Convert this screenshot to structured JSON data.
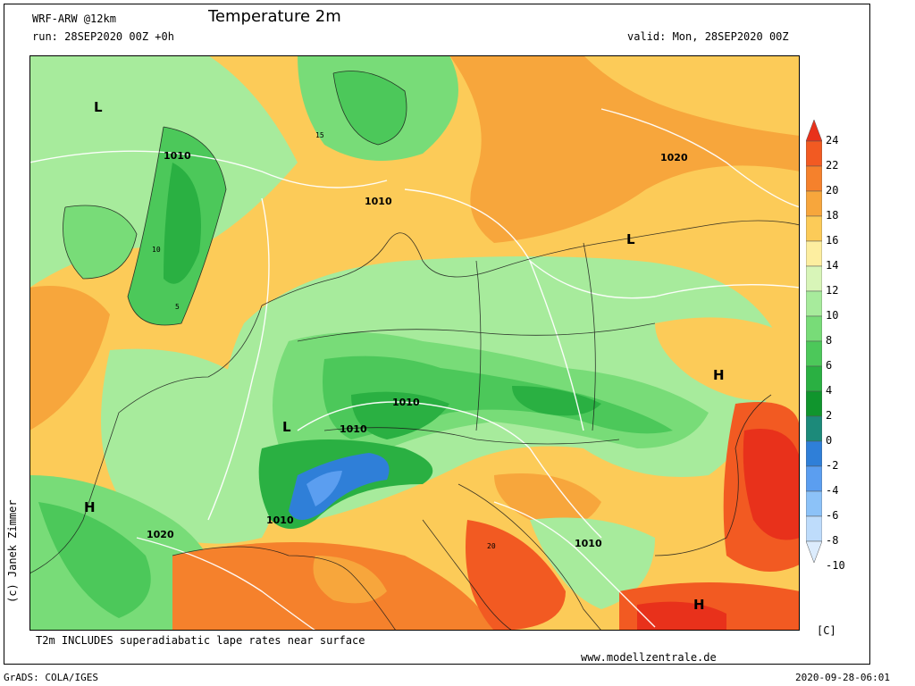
{
  "header": {
    "model": "WRF-ARW @12km",
    "title": "Temperature 2m",
    "run": "run: 28SEP2020 00Z +0h",
    "valid": "valid: Mon, 28SEP2020 00Z"
  },
  "footer": {
    "note": "T2m INCLUDES superadiabatic lape rates near surface",
    "url": "www.modellzentrale.de",
    "software": "GrADS: COLA/IGES",
    "timestamp": "2020-09-28-06:01"
  },
  "copyright": "(c) Janek Zimmer",
  "colorbar": {
    "unit": "[C]",
    "ticks": [
      "24",
      "22",
      "20",
      "18",
      "16",
      "14",
      "12",
      "10",
      "8",
      "6",
      "4",
      "2",
      "0",
      "-2",
      "-4",
      "-6",
      "-8",
      "-10"
    ],
    "colors": [
      "#e8311b",
      "#f25a22",
      "#f5812c",
      "#f7a63c",
      "#fccb58",
      "#fdeea0",
      "#d8f5b8",
      "#a7eb9c",
      "#78dc78",
      "#4cc85a",
      "#2ab042",
      "#10952d",
      "#1c8a7a",
      "#2f7fd8",
      "#5b9ef0",
      "#8cc2f8",
      "#bedcfb",
      "#dcecfd"
    ]
  },
  "map": {
    "labels": [
      {
        "text": "L",
        "kind": "low"
      },
      {
        "text": "L",
        "kind": "low"
      },
      {
        "text": "L",
        "kind": "low"
      },
      {
        "text": "H",
        "kind": "high"
      },
      {
        "text": "H",
        "kind": "high"
      },
      {
        "text": "H",
        "kind": "high"
      },
      {
        "text": "1010",
        "kind": "isobar"
      },
      {
        "text": "1010",
        "kind": "isobar"
      },
      {
        "text": "1010",
        "kind": "isobar"
      },
      {
        "text": "1010",
        "kind": "isobar"
      },
      {
        "text": "1010",
        "kind": "isobar"
      },
      {
        "text": "1010",
        "kind": "isobar"
      },
      {
        "text": "1020",
        "kind": "isobar"
      },
      {
        "text": "1020",
        "kind": "isobar"
      },
      {
        "text": "15",
        "kind": "temp"
      },
      {
        "text": "10",
        "kind": "temp"
      },
      {
        "text": "5",
        "kind": "temp"
      },
      {
        "text": "20",
        "kind": "temp"
      }
    ]
  }
}
